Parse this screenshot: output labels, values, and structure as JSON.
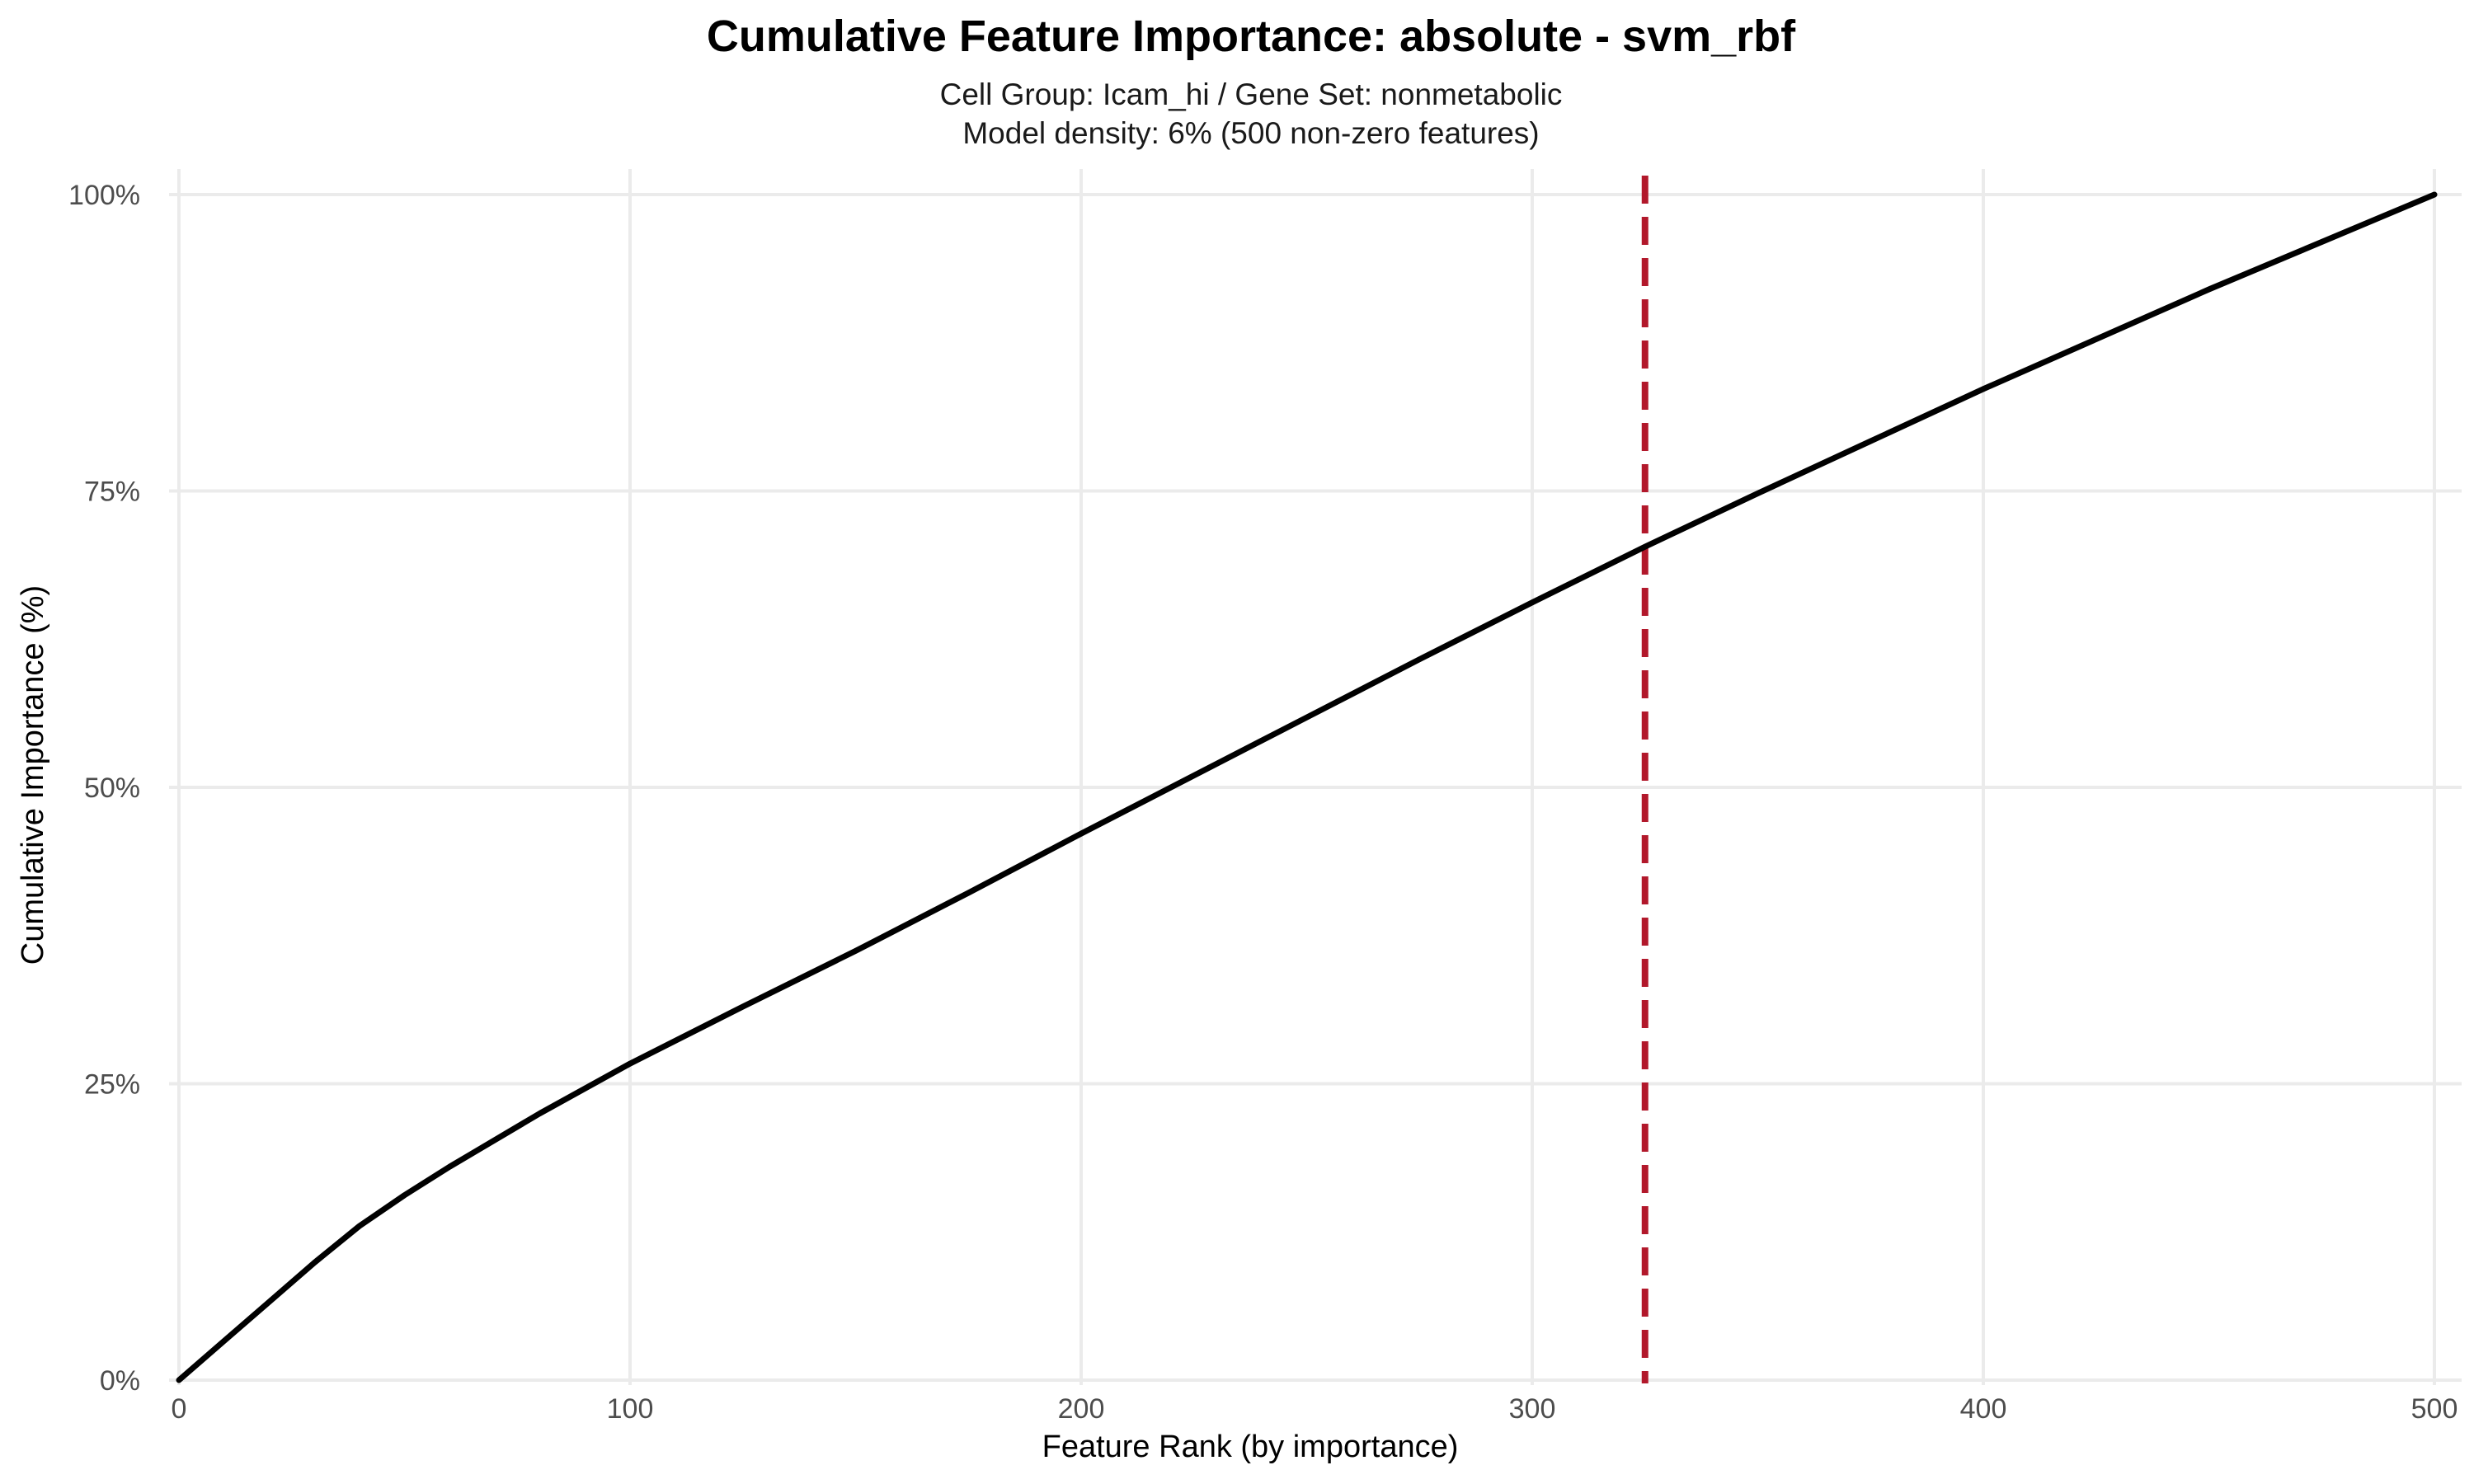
{
  "chart_data": {
    "type": "line",
    "title": "Cumulative Feature Importance: absolute - svm_rbf",
    "subtitle_lines": [
      "Cell Group: Icam_hi / Gene Set: nonmetabolic",
      "Model density: 6% (500 non-zero features)"
    ],
    "xlabel": "Feature Rank (by importance)",
    "ylabel": "Cumulative Importance (%)",
    "xlim": [
      0,
      500
    ],
    "ylim": [
      0,
      100
    ],
    "x_ticks": [
      0,
      100,
      200,
      300,
      400,
      500
    ],
    "x_tick_labels": [
      "0",
      "100",
      "200",
      "300",
      "400",
      "500"
    ],
    "y_ticks": [
      0,
      25,
      50,
      75,
      100
    ],
    "y_tick_labels": [
      "0%",
      "25%",
      "50%",
      "75%",
      "100%"
    ],
    "grid": true,
    "series": [
      {
        "color": "#000000",
        "x": [
          0,
          10,
          20,
          30,
          40,
          50,
          60,
          80,
          100,
          125,
          150,
          175,
          200,
          225,
          250,
          275,
          300,
          325,
          350,
          375,
          400,
          425,
          450,
          475,
          500
        ],
        "y": [
          0,
          3.3,
          6.6,
          9.9,
          13.0,
          15.6,
          18.0,
          22.5,
          26.7,
          31.5,
          36.2,
          41.1,
          46.1,
          51.0,
          55.9,
          60.8,
          65.6,
          70.3,
          74.8,
          79.2,
          83.6,
          87.8,
          92.0,
          96.0,
          100
        ]
      }
    ],
    "reference_line": {
      "x": 325,
      "color": "#b2182b",
      "style": "dashed"
    }
  }
}
